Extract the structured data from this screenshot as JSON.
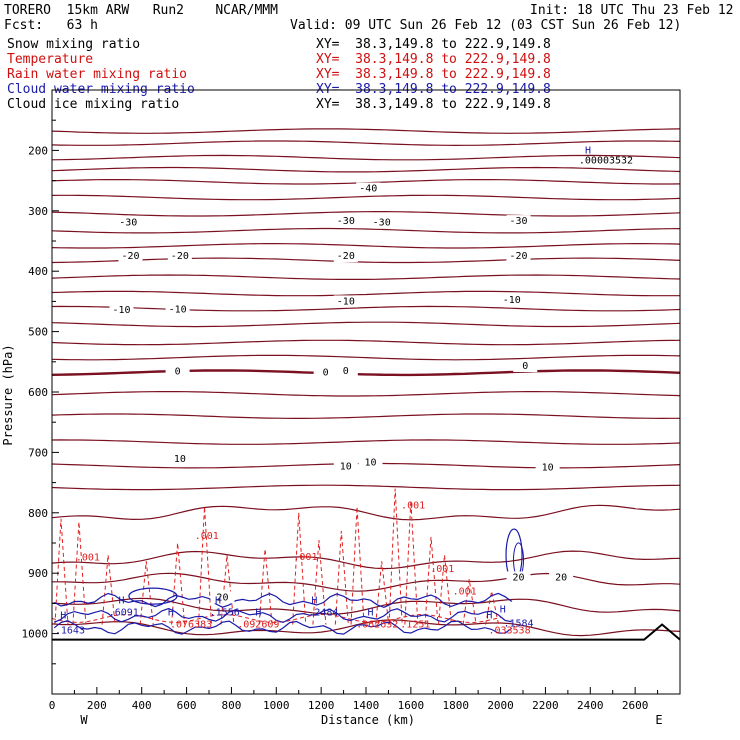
{
  "header": {
    "model": "TORERO  15km ARW   Run2    NCAR/MMM",
    "init": "Init: 18 UTC Thu 23 Feb 12",
    "fcst": "Fcst:   63 h",
    "valid": "Valid: 09 UTC Sun 26 Feb 12 (03 CST Sun 26 Feb 12)"
  },
  "legend": [
    {
      "label": "Snow mixing ratio",
      "xy": "XY=  38.3,149.8 to 222.9,149.8",
      "color": "#000000"
    },
    {
      "label": "Temperature",
      "xy": "XY=  38.3,149.8 to 222.9,149.8",
      "color": "#d01010"
    },
    {
      "label": "Rain water mixing ratio",
      "xy": "XY=  38.3,149.8 to 222.9,149.8",
      "color": "#d01010"
    },
    {
      "label": "Cloud water mixing ratio",
      "xy": "XY=  38.3,149.8 to 222.9,149.8",
      "color": "#1a1aaa"
    },
    {
      "label": "Cloud ice mixing ratio",
      "xy": "XY=  38.3,149.8 to 222.9,149.8",
      "color": "#000000"
    }
  ],
  "chart_data": {
    "type": "cross-section",
    "xlabel": "Distance (km)",
    "ylabel": "Pressure (hPa)",
    "xlim": [
      0,
      2800
    ],
    "ylim": [
      1100,
      100
    ],
    "x_ticks": [
      0,
      200,
      400,
      600,
      800,
      1000,
      1200,
      1400,
      1600,
      1800,
      2000,
      2200,
      2400,
      2600
    ],
    "y_ticks": [
      200,
      300,
      400,
      500,
      600,
      700,
      800,
      900,
      1000
    ],
    "west_label": "W",
    "east_label": "E",
    "temperature_levels": [
      {
        "t": -40,
        "p": 168
      },
      {
        "t": -40,
        "p": 188
      },
      {
        "t": -40,
        "p": 212
      },
      {
        "t": -40,
        "p": 232
      },
      {
        "t": -40,
        "p": 252
      },
      {
        "t": -30,
        "p": 278
      },
      {
        "t": -30,
        "p": 305
      },
      {
        "t": -20,
        "p": 333
      },
      {
        "t": -20,
        "p": 358
      },
      {
        "t": -20,
        "p": 382
      },
      {
        "t": -10,
        "p": 410
      },
      {
        "t": -10,
        "p": 437
      },
      {
        "t": -10,
        "p": 462
      },
      {
        "t": -10,
        "p": 488
      },
      {
        "t": 0,
        "p": 518
      },
      {
        "t": 0,
        "p": 543
      },
      {
        "t": 0,
        "p": 568
      },
      {
        "t": 0,
        "p": 603
      },
      {
        "t": 0,
        "p": 640
      },
      {
        "t": 10,
        "p": 683
      },
      {
        "t": 10,
        "p": 722
      },
      {
        "t": 10,
        "p": 758
      },
      {
        "t": 20,
        "p": 800
      },
      {
        "t": 20,
        "p": 878
      },
      {
        "t": 20,
        "p": 915
      },
      {
        "t": 20,
        "p": 955
      },
      {
        "t": 20,
        "p": 990
      }
    ],
    "temperature_labels": [
      {
        "text": "-40",
        "x": 1410,
        "p": 268
      },
      {
        "text": "-30",
        "x": 340,
        "p": 324
      },
      {
        "text": "-30",
        "x": 1310,
        "p": 322
      },
      {
        "text": "-30",
        "x": 1470,
        "p": 324
      },
      {
        "text": "-30",
        "x": 2080,
        "p": 322
      },
      {
        "text": "-20",
        "x": 350,
        "p": 380
      },
      {
        "text": "-20",
        "x": 570,
        "p": 380
      },
      {
        "text": "-20",
        "x": 1310,
        "p": 380
      },
      {
        "text": "-20",
        "x": 2080,
        "p": 380
      },
      {
        "text": "-10",
        "x": 310,
        "p": 469
      },
      {
        "text": "-10",
        "x": 560,
        "p": 468
      },
      {
        "text": "-10",
        "x": 1310,
        "p": 455
      },
      {
        "text": "-10",
        "x": 2050,
        "p": 453
      },
      {
        "text": "0",
        "x": 560,
        "p": 571
      },
      {
        "text": "0",
        "x": 1220,
        "p": 573
      },
      {
        "text": "0",
        "x": 1310,
        "p": 570
      },
      {
        "text": "0",
        "x": 2110,
        "p": 562
      },
      {
        "text": "10",
        "x": 570,
        "p": 716
      },
      {
        "text": "10",
        "x": 1310,
        "p": 728
      },
      {
        "text": "10",
        "x": 1420,
        "p": 722
      },
      {
        "text": "10",
        "x": 2210,
        "p": 730
      },
      {
        "text": "20",
        "x": 2080,
        "p": 912
      },
      {
        "text": "20",
        "x": 2270,
        "p": 912
      },
      {
        "text": "20",
        "x": 760,
        "p": 945
      }
    ],
    "rain_labels": [
      {
        "text": ".001",
        "x": 160,
        "p": 879
      },
      {
        "text": ".001",
        "x": 690,
        "p": 843
      },
      {
        "text": ".001",
        "x": 1130,
        "p": 878
      },
      {
        "text": ".001",
        "x": 1610,
        "p": 793
      },
      {
        "text": ".001",
        "x": 1740,
        "p": 898
      },
      {
        "text": ".001",
        "x": 1840,
        "p": 935
      },
      {
        "text": ".076383",
        "x": 620,
        "p": 990
      },
      {
        "text": ".092609",
        "x": 920,
        "p": 990
      },
      {
        "text": ".062632",
        "x": 1450,
        "p": 990
      },
      {
        "text": ".1251",
        "x": 1620,
        "p": 990
      },
      {
        "text": ".033538",
        "x": 2040,
        "p": 1000
      }
    ],
    "cloud_water_labels": [
      {
        "text": ".1643",
        "x": 80,
        "p": 1000
      },
      {
        "text": ".6091",
        "x": 320,
        "p": 970
      },
      {
        "text": ".1556",
        "x": 770,
        "p": 970
      },
      {
        "text": ".2484",
        "x": 1210,
        "p": 970
      },
      {
        "text": ".1584",
        "x": 2080,
        "p": 988
      }
    ],
    "highs": [
      {
        "text": "H",
        "x": 310,
        "p": 950
      },
      {
        "text": "H",
        "x": 740,
        "p": 950
      },
      {
        "text": "H",
        "x": 1170,
        "p": 950
      },
      {
        "text": "H",
        "x": 530,
        "p": 970
      },
      {
        "text": "H",
        "x": 920,
        "p": 970
      },
      {
        "text": "H",
        "x": 1420,
        "p": 970
      },
      {
        "text": "H",
        "x": 1950,
        "p": 975
      },
      {
        "text": "H",
        "x": 2010,
        "p": 965
      },
      {
        "text": "H",
        "x": 50,
        "p": 975
      },
      {
        "text": "H",
        "x": 2390,
        "p": 205
      }
    ],
    "snow_max_label": {
      "text": ".00003532",
      "x": 2470,
      "p": 222
    }
  }
}
